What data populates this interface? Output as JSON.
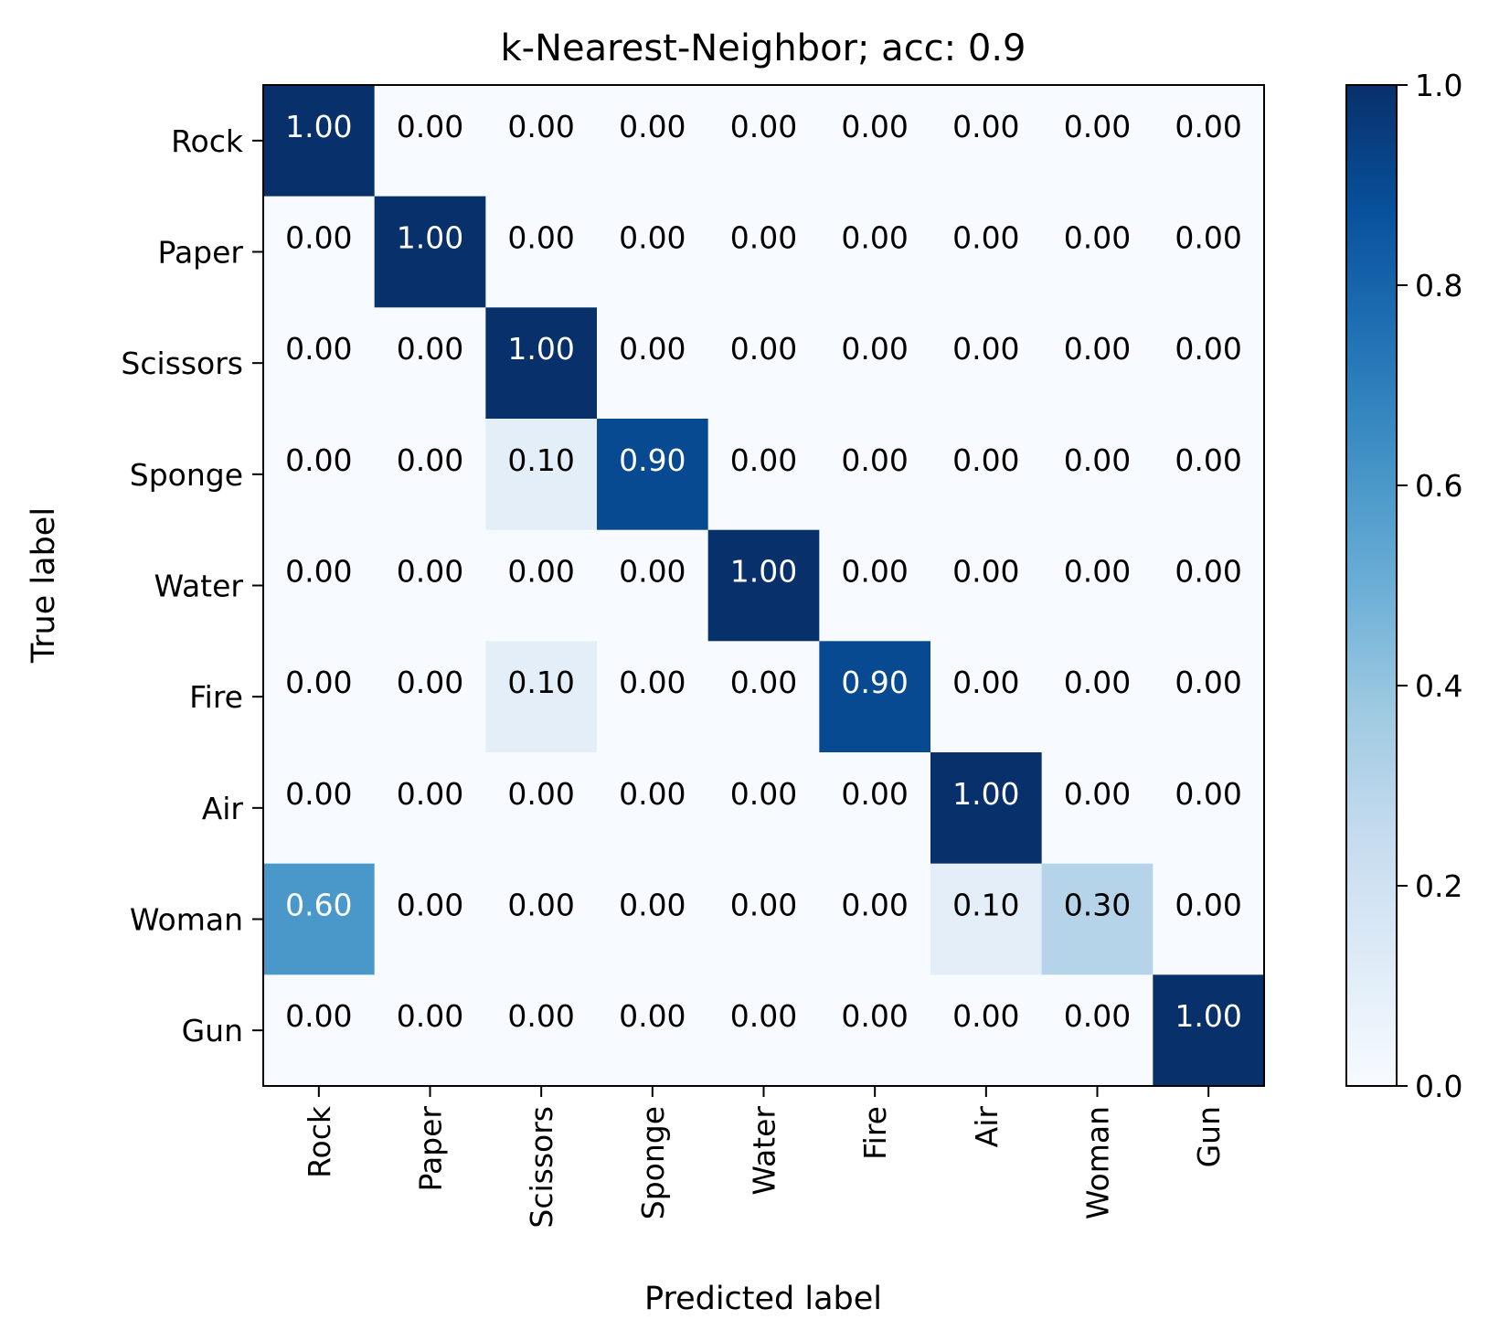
{
  "chart_data": {
    "type": "heatmap",
    "title": "k-Nearest-Neighbor; acc: 0.9",
    "xlabel": "Predicted label",
    "ylabel": "True label",
    "x_categories": [
      "Rock",
      "Paper",
      "Scissors",
      "Sponge",
      "Water",
      "Fire",
      "Air",
      "Woman",
      "Gun"
    ],
    "y_categories": [
      "Rock",
      "Paper",
      "Scissors",
      "Sponge",
      "Water",
      "Fire",
      "Air",
      "Woman",
      "Gun"
    ],
    "values": [
      [
        1.0,
        0.0,
        0.0,
        0.0,
        0.0,
        0.0,
        0.0,
        0.0,
        0.0
      ],
      [
        0.0,
        1.0,
        0.0,
        0.0,
        0.0,
        0.0,
        0.0,
        0.0,
        0.0
      ],
      [
        0.0,
        0.0,
        1.0,
        0.0,
        0.0,
        0.0,
        0.0,
        0.0,
        0.0
      ],
      [
        0.0,
        0.0,
        0.1,
        0.9,
        0.0,
        0.0,
        0.0,
        0.0,
        0.0
      ],
      [
        0.0,
        0.0,
        0.0,
        0.0,
        1.0,
        0.0,
        0.0,
        0.0,
        0.0
      ],
      [
        0.0,
        0.0,
        0.1,
        0.0,
        0.0,
        0.9,
        0.0,
        0.0,
        0.0
      ],
      [
        0.0,
        0.0,
        0.0,
        0.0,
        0.0,
        0.0,
        1.0,
        0.0,
        0.0
      ],
      [
        0.6,
        0.0,
        0.0,
        0.0,
        0.0,
        0.0,
        0.1,
        0.3,
        0.0
      ],
      [
        0.0,
        0.0,
        0.0,
        0.0,
        0.0,
        0.0,
        0.0,
        0.0,
        1.0
      ]
    ],
    "value_format": "0.00",
    "colorbar": {
      "min": 0.0,
      "max": 1.0,
      "ticks": [
        0.0,
        0.2,
        0.4,
        0.6,
        0.8,
        1.0
      ],
      "tick_labels": [
        "0.0",
        "0.2",
        "0.4",
        "0.6",
        "0.8",
        "1.0"
      ]
    },
    "colormap": "Blues",
    "colors": {
      "low": "#f7fbff",
      "high": "#08306b",
      "text_light": "#ffffff",
      "text_dark": "#000000"
    },
    "grid": false
  }
}
